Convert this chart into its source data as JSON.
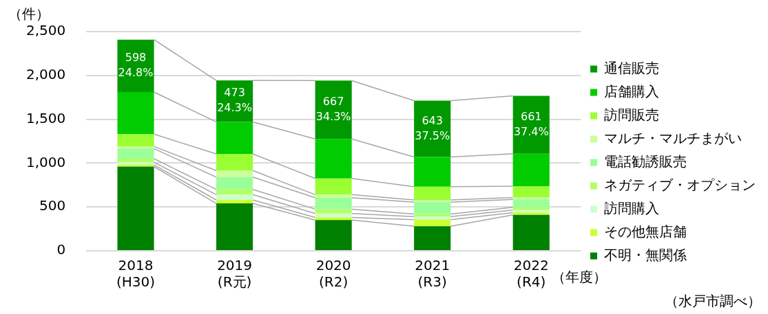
{
  "chart_data": {
    "type": "bar",
    "stacked": true,
    "categories": [
      "2018\n(H30)",
      "2019\n(R元)",
      "2020\n(R2)",
      "2021\n(R3)",
      "2022\n(R4)"
    ],
    "ylabel": "（件）",
    "xlabel": "（年度）",
    "ylim": [
      0,
      2500
    ],
    "yticks": [
      {
        "value": 0,
        "label": "0"
      },
      {
        "value": 500,
        "label": "500"
      },
      {
        "value": 1000,
        "label": "1,000"
      },
      {
        "value": 1500,
        "label": "1,500"
      },
      {
        "value": 2000,
        "label": "2,000"
      },
      {
        "value": 2500,
        "label": "2,500"
      }
    ],
    "grid": "y",
    "legend": "right",
    "series": [
      {
        "name": "不明・無関係",
        "color": "#008000",
        "values": [
          960,
          540,
          350,
          280,
          410
        ]
      },
      {
        "name": "その他無店舗",
        "color": "#ccff33",
        "values": [
          20,
          40,
          30,
          75,
          25
        ]
      },
      {
        "name": "訪問購入",
        "color": "#ccffcc",
        "values": [
          30,
          60,
          45,
          35,
          30
        ]
      },
      {
        "name": "ネガティブ・オプション",
        "color": "#b3ff66",
        "values": [
          40,
          60,
          50,
          30,
          30
        ]
      },
      {
        "name": "電話勧誘販売",
        "color": "#99ff99",
        "values": [
          115,
          140,
          130,
          135,
          90
        ]
      },
      {
        "name": "マルチ・マルチまがい",
        "color": "#ccff99",
        "values": [
          25,
          75,
          35,
          25,
          22
        ]
      },
      {
        "name": "訪問販売",
        "color": "#99ff33",
        "values": [
          140,
          190,
          185,
          150,
          130
        ]
      },
      {
        "name": "店舗購入",
        "color": "#00cc00",
        "values": [
          480,
          365,
          450,
          340,
          370
        ]
      },
      {
        "name": "通信販売",
        "color": "#009900",
        "values": [
          598,
          473,
          667,
          643,
          661
        ],
        "value_labels": [
          "598\n24.8%",
          "473\n24.3%",
          "667\n34.3%",
          "643\n37.5%",
          "661\n37.4%"
        ]
      }
    ],
    "annotations": [
      "（水戸市調べ）"
    ]
  }
}
